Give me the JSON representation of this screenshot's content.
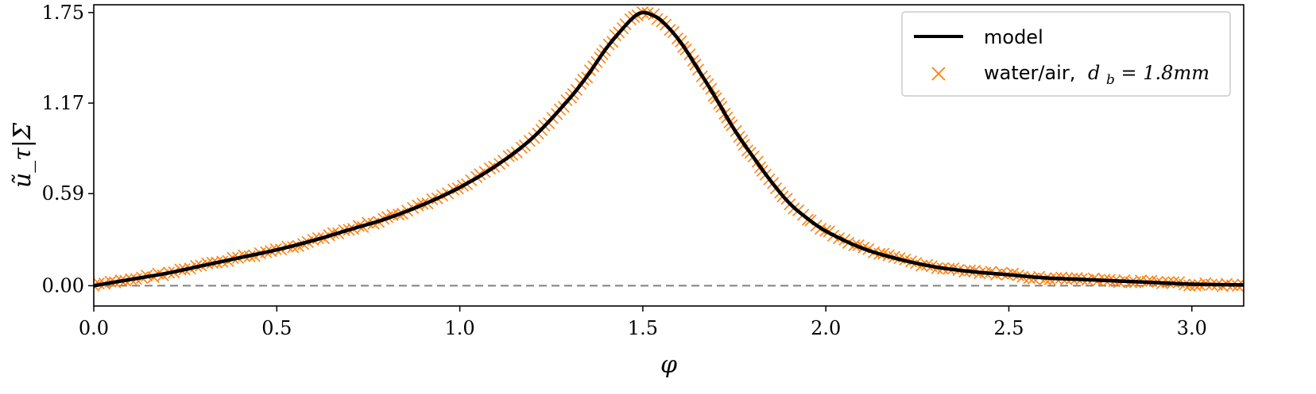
{
  "chart_data": {
    "type": "line",
    "xlabel": "φ",
    "ylabel": "ũ_τ|Σ",
    "xlim": [
      0.0,
      3.1416
    ],
    "ylim": [
      -0.13,
      1.8
    ],
    "xticks": [
      0.0,
      0.5,
      1.0,
      1.5,
      2.0,
      2.5,
      3.0
    ],
    "xtick_labels": [
      "0.0",
      "0.5",
      "1.0",
      "1.5",
      "2.0",
      "2.5",
      "3.0"
    ],
    "yticks": [
      0.0,
      0.59,
      1.17,
      1.75
    ],
    "ytick_labels": [
      "0.00",
      "0.59",
      "1.17",
      "1.75"
    ],
    "grid": false,
    "legend_position": "top-right",
    "reference_line": {
      "y": 0.0,
      "style": "dashed",
      "color": "#808080"
    },
    "series": [
      {
        "name": "model",
        "kind": "line",
        "color": "#000000",
        "x": [
          0.0,
          0.1,
          0.2,
          0.3,
          0.4,
          0.5,
          0.6,
          0.7,
          0.8,
          0.9,
          1.0,
          1.1,
          1.2,
          1.3,
          1.35,
          1.4,
          1.45,
          1.48,
          1.5,
          1.52,
          1.55,
          1.6,
          1.65,
          1.7,
          1.75,
          1.8,
          1.85,
          1.9,
          1.95,
          2.0,
          2.1,
          2.2,
          2.3,
          2.4,
          2.5,
          2.6,
          2.7,
          2.8,
          2.9,
          3.0,
          3.1416
        ],
        "y": [
          0.0,
          0.04,
          0.08,
          0.13,
          0.18,
          0.23,
          0.29,
          0.36,
          0.43,
          0.52,
          0.63,
          0.77,
          0.95,
          1.2,
          1.35,
          1.52,
          1.66,
          1.73,
          1.75,
          1.74,
          1.7,
          1.57,
          1.39,
          1.2,
          1.0,
          0.83,
          0.67,
          0.53,
          0.43,
          0.35,
          0.24,
          0.17,
          0.12,
          0.09,
          0.07,
          0.05,
          0.04,
          0.03,
          0.02,
          0.01,
          0.005
        ]
      },
      {
        "name": "water/air, d_b = 1.8mm",
        "legend_plain": "water/air,",
        "legend_math": "d",
        "legend_math_sub": "b",
        "legend_math_rest": " = 1.8mm",
        "kind": "scatter",
        "marker": "x",
        "color": "#ff7f0e",
        "density": "dense",
        "x_range": [
          0.0,
          3.1416
        ],
        "note": "dense x-marker samples following the model curve"
      }
    ]
  }
}
